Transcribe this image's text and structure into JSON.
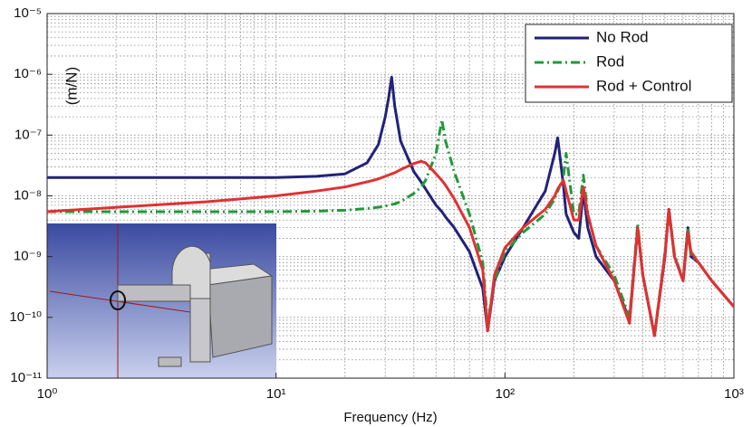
{
  "chart_data": {
    "type": "line",
    "xlabel": "Frequency (Hz)",
    "ylabel": "(m/N)",
    "xscale": "log",
    "yscale": "log",
    "grid": true,
    "minor_grid": true,
    "legend": "upper right",
    "xlim": [
      1,
      1000
    ],
    "xticks": [
      {
        "value": 1,
        "label": "10⁰"
      },
      {
        "value": 10,
        "label": "10¹"
      },
      {
        "value": 100,
        "label": "10²"
      },
      {
        "value": 1000,
        "label": "10³"
      }
    ],
    "ylim": [
      1e-11,
      1e-05
    ],
    "yticks": [
      {
        "value": 1e-11,
        "label": "10⁻¹¹"
      },
      {
        "value": 1e-10,
        "label": "10⁻¹⁰"
      },
      {
        "value": 1e-09,
        "label": "10⁻⁹"
      },
      {
        "value": 1e-08,
        "label": "10⁻⁸"
      },
      {
        "value": 1e-07,
        "label": "10⁻⁷"
      },
      {
        "value": 1e-06,
        "label": "10⁻⁶"
      },
      {
        "value": 1e-05,
        "label": "10⁻⁵"
      }
    ],
    "x": [
      1,
      5,
      10,
      15,
      20,
      25,
      28,
      30,
      31,
      32,
      33,
      35,
      40,
      43,
      45,
      50,
      53,
      55,
      60,
      70,
      80,
      84,
      90,
      100,
      120,
      150,
      165,
      170,
      180,
      185,
      200,
      210,
      220,
      230,
      250,
      300,
      350,
      380,
      400,
      450,
      500,
      520,
      550,
      600,
      630,
      650,
      700,
      800,
      1000
    ],
    "series": [
      {
        "name": "No  Rod",
        "color": "#22227a",
        "dash": "solid",
        "values": [
          2e-08,
          2e-08,
          2e-08,
          2.1e-08,
          2.3e-08,
          3.5e-08,
          7e-08,
          2e-07,
          4e-07,
          9e-07,
          3e-07,
          8e-08,
          2.5e-08,
          1.7e-08,
          1.3e-08,
          7e-09,
          5.5e-09,
          4.5e-09,
          3e-09,
          1.2e-09,
          3e-10,
          6e-11,
          4e-10,
          1e-09,
          3e-09,
          1.2e-08,
          5e-08,
          9e-08,
          1.5e-08,
          5e-09,
          2.5e-09,
          2e-09,
          1.2e-08,
          3e-09,
          1e-09,
          4e-10,
          9e-11,
          3e-09,
          5e-10,
          5e-11,
          1e-09,
          6e-09,
          1e-09,
          4e-10,
          3e-09,
          1e-09,
          8e-10,
          4e-10,
          1.5e-10
        ]
      },
      {
        "name": "Rod",
        "color": "#1f9a3a",
        "dash": "dashdot",
        "values": [
          5.5e-09,
          5.5e-09,
          5.5e-09,
          5.6e-09,
          5.8e-09,
          6.2e-09,
          6.5e-09,
          6.8e-09,
          7e-09,
          7.2e-09,
          7.4e-09,
          8e-09,
          1.1e-08,
          1.4e-08,
          1.8e-08,
          5e-08,
          1.8e-07,
          8e-08,
          2.5e-08,
          5e-09,
          8e-10,
          8e-11,
          4e-10,
          1.2e-09,
          2.5e-09,
          5e-09,
          9e-09,
          1.2e-08,
          2e-08,
          5e-08,
          5e-09,
          5e-09,
          2.2e-08,
          5e-09,
          1.5e-09,
          5e-10,
          1e-10,
          3.5e-09,
          5e-10,
          5e-11,
          1.2e-09,
          6e-09,
          1.1e-09,
          4e-10,
          3e-09,
          1e-09,
          8e-10,
          4e-10,
          1.5e-10
        ]
      },
      {
        "name": "Rod + Control",
        "color": "#e03232",
        "dash": "solid",
        "values": [
          5.5e-09,
          8e-09,
          1e-08,
          1.2e-08,
          1.4e-08,
          1.7e-08,
          1.9e-08,
          2.1e-08,
          2.2e-08,
          2.3e-08,
          2.4e-08,
          2.7e-08,
          3.4e-08,
          3.7e-08,
          3.5e-08,
          2.3e-08,
          1.8e-08,
          1.5e-08,
          9e-09,
          3e-09,
          6e-10,
          6e-11,
          5e-10,
          1.4e-09,
          3e-09,
          6e-09,
          1e-08,
          1.3e-08,
          1.8e-08,
          1.2e-08,
          4e-09,
          4e-09,
          1.4e-08,
          5e-09,
          1.5e-09,
          4e-10,
          8e-11,
          3e-09,
          5e-10,
          5e-11,
          1.1e-09,
          6e-09,
          1e-09,
          4e-10,
          2.5e-09,
          1.2e-09,
          8e-10,
          4e-10,
          1.5e-10
        ]
      }
    ]
  }
}
